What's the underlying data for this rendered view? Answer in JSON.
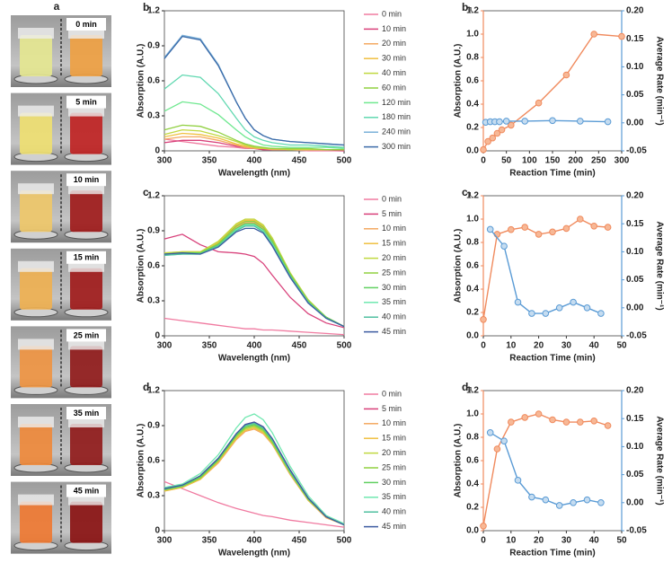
{
  "panel_a": {
    "label": "a",
    "photos": [
      {
        "label": "0 min",
        "left_color": "#e6e890",
        "right_color": "#f0a040"
      },
      {
        "label": "5 min",
        "left_color": "#f0e070",
        "right_color": "#c02020"
      },
      {
        "label": "10 min",
        "left_color": "#f0c868",
        "right_color": "#a01818"
      },
      {
        "label": "15 min",
        "left_color": "#f0b050",
        "right_color": "#a01818"
      },
      {
        "label": "25 min",
        "left_color": "#f09440",
        "right_color": "#901818"
      },
      {
        "label": "35 min",
        "left_color": "#f08838",
        "right_color": "#901818"
      },
      {
        "label": "45 min",
        "left_color": "#f07830",
        "right_color": "#8a1010"
      }
    ]
  },
  "chart_data": [
    {
      "type": "line",
      "panel": "b",
      "xlabel": "Wavelength (nm)",
      "ylabel": "Absorption (A.U.)",
      "x": [
        300,
        320,
        340,
        360,
        380,
        390,
        400,
        410,
        420,
        440,
        460,
        480,
        500
      ],
      "xlim": [
        300,
        500
      ],
      "xticks": [
        300,
        350,
        400,
        450,
        500
      ],
      "ylim": [
        0,
        1.2
      ],
      "yticks": [
        0,
        0.3,
        0.6,
        0.9,
        1.2
      ],
      "legend": "right",
      "series": [
        {
          "name": "0 min",
          "color": "#f07aa0",
          "values": [
            0.1,
            0.08,
            0.06,
            0.04,
            0.03,
            0.02,
            0.02,
            0.01,
            0.01,
            0.01,
            0.0,
            0.0,
            0.0
          ]
        },
        {
          "name": "10 min",
          "color": "#d8407a",
          "values": [
            0.07,
            0.09,
            0.09,
            0.07,
            0.04,
            0.03,
            0.02,
            0.01,
            0.01,
            0.01,
            0.01,
            0.01,
            0.0
          ]
        },
        {
          "name": "20 min",
          "color": "#f4a860",
          "values": [
            0.1,
            0.12,
            0.12,
            0.09,
            0.05,
            0.03,
            0.02,
            0.02,
            0.01,
            0.01,
            0.01,
            0.01,
            0.01
          ]
        },
        {
          "name": "30 min",
          "color": "#f0c040",
          "values": [
            0.12,
            0.15,
            0.14,
            0.11,
            0.06,
            0.04,
            0.03,
            0.02,
            0.02,
            0.01,
            0.01,
            0.01,
            0.01
          ]
        },
        {
          "name": "40 min",
          "color": "#c0d840",
          "values": [
            0.14,
            0.18,
            0.17,
            0.13,
            0.08,
            0.05,
            0.03,
            0.02,
            0.02,
            0.01,
            0.01,
            0.01,
            0.01
          ]
        },
        {
          "name": "60 min",
          "color": "#90d040",
          "values": [
            0.18,
            0.22,
            0.21,
            0.16,
            0.09,
            0.06,
            0.04,
            0.03,
            0.02,
            0.02,
            0.02,
            0.01,
            0.01
          ]
        },
        {
          "name": "120 min",
          "color": "#70e890",
          "values": [
            0.34,
            0.42,
            0.4,
            0.31,
            0.18,
            0.12,
            0.08,
            0.05,
            0.04,
            0.03,
            0.03,
            0.03,
            0.02
          ]
        },
        {
          "name": "180 min",
          "color": "#60d8b0",
          "values": [
            0.53,
            0.65,
            0.63,
            0.49,
            0.28,
            0.18,
            0.12,
            0.09,
            0.07,
            0.05,
            0.05,
            0.04,
            0.03
          ]
        },
        {
          "name": "240 min",
          "color": "#7ab0d8",
          "values": [
            0.8,
            0.99,
            0.96,
            0.74,
            0.42,
            0.28,
            0.18,
            0.13,
            0.1,
            0.08,
            0.07,
            0.06,
            0.05
          ]
        },
        {
          "name": "300 min",
          "color": "#3a6aa8",
          "values": [
            0.79,
            0.98,
            0.95,
            0.73,
            0.42,
            0.28,
            0.18,
            0.13,
            0.1,
            0.08,
            0.07,
            0.06,
            0.05
          ]
        }
      ]
    },
    {
      "type": "line",
      "panel": "c",
      "xlabel": "Wavelength (nm)",
      "ylabel": "Absorption (A.U.)",
      "x": [
        300,
        320,
        340,
        360,
        380,
        390,
        400,
        410,
        420,
        440,
        460,
        480,
        500
      ],
      "xlim": [
        300,
        500
      ],
      "xticks": [
        300,
        350,
        400,
        450,
        500
      ],
      "ylim": [
        0,
        1.2
      ],
      "yticks": [
        0,
        0.3,
        0.6,
        0.9,
        1.2
      ],
      "legend": "right",
      "series": [
        {
          "name": "0 min",
          "color": "#f07aa0",
          "values": [
            0.15,
            0.13,
            0.11,
            0.09,
            0.07,
            0.06,
            0.06,
            0.05,
            0.05,
            0.04,
            0.03,
            0.02,
            0.01
          ]
        },
        {
          "name": "5 min",
          "color": "#d8407a",
          "values": [
            0.83,
            0.87,
            0.78,
            0.72,
            0.71,
            0.7,
            0.68,
            0.62,
            0.52,
            0.33,
            0.19,
            0.11,
            0.07
          ]
        },
        {
          "name": "10 min",
          "color": "#f4a860",
          "values": [
            0.7,
            0.71,
            0.71,
            0.79,
            0.93,
            0.97,
            0.97,
            0.92,
            0.81,
            0.53,
            0.3,
            0.16,
            0.08
          ]
        },
        {
          "name": "15 min",
          "color": "#f0c040",
          "values": [
            0.71,
            0.72,
            0.72,
            0.8,
            0.95,
            0.99,
            0.99,
            0.94,
            0.83,
            0.54,
            0.3,
            0.16,
            0.08
          ]
        },
        {
          "name": "20 min",
          "color": "#c0d840",
          "values": [
            0.71,
            0.72,
            0.72,
            0.81,
            0.96,
            1.0,
            1.0,
            0.95,
            0.84,
            0.54,
            0.31,
            0.16,
            0.08
          ]
        },
        {
          "name": "25 min",
          "color": "#90d040",
          "values": [
            0.7,
            0.71,
            0.71,
            0.79,
            0.94,
            0.98,
            0.98,
            0.93,
            0.82,
            0.53,
            0.3,
            0.16,
            0.08
          ]
        },
        {
          "name": "30 min",
          "color": "#60d060",
          "values": [
            0.7,
            0.71,
            0.71,
            0.78,
            0.92,
            0.96,
            0.96,
            0.91,
            0.8,
            0.52,
            0.29,
            0.16,
            0.08
          ]
        },
        {
          "name": "35 min",
          "color": "#70e8b0",
          "values": [
            0.69,
            0.7,
            0.7,
            0.77,
            0.91,
            0.95,
            0.95,
            0.9,
            0.79,
            0.51,
            0.29,
            0.15,
            0.08
          ]
        },
        {
          "name": "40 min",
          "color": "#50c0a0",
          "values": [
            0.69,
            0.7,
            0.7,
            0.77,
            0.9,
            0.94,
            0.94,
            0.89,
            0.78,
            0.51,
            0.29,
            0.15,
            0.08
          ]
        },
        {
          "name": "45 min",
          "color": "#3a5aa0",
          "values": [
            0.7,
            0.71,
            0.7,
            0.76,
            0.89,
            0.92,
            0.92,
            0.88,
            0.77,
            0.5,
            0.28,
            0.15,
            0.08
          ]
        }
      ]
    },
    {
      "type": "line",
      "panel": "d",
      "xlabel": "Wavelength (nm)",
      "ylabel": "Absorption (A.U.)",
      "x": [
        300,
        320,
        340,
        360,
        380,
        390,
        400,
        410,
        420,
        440,
        460,
        480,
        500
      ],
      "xlim": [
        300,
        500
      ],
      "xticks": [
        300,
        350,
        400,
        450,
        500
      ],
      "ylim": [
        0,
        1.2
      ],
      "yticks": [
        0,
        0.3,
        0.6,
        0.9,
        1.2
      ],
      "legend": "right",
      "series": [
        {
          "name": "0 min",
          "color": "#f07aa0",
          "values": [
            0.42,
            0.36,
            0.3,
            0.24,
            0.19,
            0.17,
            0.15,
            0.13,
            0.12,
            0.09,
            0.07,
            0.05,
            0.03
          ]
        },
        {
          "name": "5 min",
          "color": "#d8407a",
          "values": [
            0.36,
            0.39,
            0.47,
            0.62,
            0.83,
            0.91,
            0.93,
            0.89,
            0.79,
            0.52,
            0.28,
            0.12,
            0.05
          ]
        },
        {
          "name": "10 min",
          "color": "#f4a860",
          "values": [
            0.34,
            0.37,
            0.44,
            0.58,
            0.78,
            0.85,
            0.87,
            0.83,
            0.74,
            0.48,
            0.26,
            0.11,
            0.05
          ]
        },
        {
          "name": "15 min",
          "color": "#f0c040",
          "values": [
            0.34,
            0.37,
            0.44,
            0.59,
            0.79,
            0.86,
            0.88,
            0.84,
            0.75,
            0.49,
            0.26,
            0.12,
            0.05
          ]
        },
        {
          "name": "20 min",
          "color": "#c0d840",
          "values": [
            0.35,
            0.38,
            0.45,
            0.6,
            0.8,
            0.87,
            0.89,
            0.85,
            0.75,
            0.49,
            0.27,
            0.12,
            0.05
          ]
        },
        {
          "name": "25 min",
          "color": "#90d040",
          "values": [
            0.35,
            0.38,
            0.45,
            0.6,
            0.81,
            0.88,
            0.9,
            0.86,
            0.76,
            0.5,
            0.27,
            0.12,
            0.05
          ]
        },
        {
          "name": "30 min",
          "color": "#60d060",
          "values": [
            0.35,
            0.38,
            0.46,
            0.61,
            0.82,
            0.89,
            0.91,
            0.87,
            0.77,
            0.5,
            0.27,
            0.12,
            0.05
          ]
        },
        {
          "name": "35 min",
          "color": "#70e8b0",
          "values": [
            0.37,
            0.4,
            0.49,
            0.65,
            0.88,
            0.97,
            1.0,
            0.95,
            0.84,
            0.55,
            0.3,
            0.13,
            0.06
          ]
        },
        {
          "name": "40 min",
          "color": "#50c0a0",
          "values": [
            0.36,
            0.39,
            0.47,
            0.62,
            0.83,
            0.9,
            0.92,
            0.88,
            0.78,
            0.51,
            0.28,
            0.12,
            0.05
          ]
        },
        {
          "name": "45 min",
          "color": "#3a5aa0",
          "values": [
            0.36,
            0.39,
            0.47,
            0.62,
            0.83,
            0.91,
            0.93,
            0.89,
            0.79,
            0.52,
            0.28,
            0.12,
            0.05
          ]
        }
      ]
    },
    {
      "type": "line",
      "panel": "b₁",
      "xlabel": "Reaction Time (min)",
      "ylabel": "Absorption (A.U.)",
      "y2label": "Average Rate (min⁻¹)",
      "xlim": [
        0,
        300
      ],
      "xticks": [
        0,
        50,
        100,
        150,
        200,
        250,
        300
      ],
      "ylim": [
        0,
        1.2
      ],
      "yticks": [
        {
          "value": 0,
          "label": "0.0"
        },
        0.2,
        0.4,
        0.6,
        0.8,
        {
          "value": 1,
          "label": "1.0"
        },
        1.2
      ],
      "y2lim": [
        -0.05,
        0.2
      ],
      "y2ticks": [
        -0.05,
        {
          "value": 0,
          "label": "0.00"
        },
        0.05,
        {
          "value": 0.1,
          "label": "0.10"
        },
        0.15,
        {
          "value": 0.2,
          "label": "0.20"
        }
      ],
      "series": [
        {
          "color": "#f08a5d",
          "marker_fill": "#f7b896",
          "x": [
            0,
            10,
            20,
            30,
            40,
            60,
            120,
            180,
            240,
            300
          ],
          "values": [
            0.01,
            0.08,
            0.11,
            0.15,
            0.18,
            0.22,
            0.41,
            0.65,
            1.0,
            0.98
          ]
        },
        {
          "color": "#5a9bd5",
          "marker_fill": "#c5dcf0",
          "axis": "y2",
          "x": [
            5,
            15,
            25,
            35,
            50,
            90,
            150,
            210,
            270
          ],
          "values": [
            0.001,
            0.002,
            0.002,
            0.002,
            0.003,
            0.003,
            0.004,
            0.003,
            0.002
          ]
        }
      ]
    },
    {
      "type": "line",
      "panel": "c₁",
      "xlabel": "Reaction Time (min)",
      "ylabel": "Absorption (A.U.)",
      "y2label": "Average Rate (min⁻¹)",
      "xlim": [
        0,
        50
      ],
      "xticks": [
        0,
        10,
        20,
        30,
        40,
        50
      ],
      "ylim": [
        0,
        1.2
      ],
      "yticks": [
        {
          "value": 0,
          "label": "0.0"
        },
        0.2,
        0.4,
        0.6,
        0.8,
        {
          "value": 1,
          "label": "1.0"
        },
        1.2
      ],
      "y2lim": [
        -0.05,
        0.2
      ],
      "y2ticks": [
        -0.05,
        {
          "value": 0,
          "label": "0.00"
        },
        0.05,
        {
          "value": 0.1,
          "label": "0.10"
        },
        0.15,
        {
          "value": 0.2,
          "label": "0.20"
        }
      ],
      "series": [
        {
          "color": "#f08a5d",
          "marker_fill": "#f7b896",
          "x": [
            0,
            5,
            10,
            15,
            20,
            25,
            30,
            35,
            40,
            45
          ],
          "values": [
            0.14,
            0.87,
            0.91,
            0.93,
            0.87,
            0.89,
            0.92,
            1.0,
            0.94,
            0.93
          ]
        },
        {
          "color": "#5a9bd5",
          "marker_fill": "#c5dcf0",
          "axis": "y2",
          "x": [
            2.5,
            7.5,
            12.5,
            17.5,
            22.5,
            27.5,
            32.5,
            37.5,
            42.5
          ],
          "values": [
            0.14,
            0.11,
            0.01,
            -0.01,
            -0.01,
            0.0,
            0.01,
            0.0,
            -0.01
          ]
        }
      ]
    },
    {
      "type": "line",
      "panel": "d₁",
      "xlabel": "Reaction Time (min)",
      "ylabel": "Absorption (A.U.)",
      "y2label": "Average Rate (min⁻¹)",
      "xlim": [
        0,
        50
      ],
      "xticks": [
        0,
        10,
        20,
        30,
        40,
        50
      ],
      "ylim": [
        0,
        1.2
      ],
      "yticks": [
        {
          "value": 0,
          "label": "0.0"
        },
        0.2,
        0.4,
        0.6,
        0.8,
        {
          "value": 1,
          "label": "1.0"
        },
        1.2
      ],
      "y2lim": [
        -0.05,
        0.2
      ],
      "y2ticks": [
        -0.05,
        {
          "value": 0,
          "label": "0.00"
        },
        0.05,
        {
          "value": 0.1,
          "label": "0.10"
        },
        0.15,
        {
          "value": 0.2,
          "label": "0.20"
        }
      ],
      "series": [
        {
          "color": "#f08a5d",
          "marker_fill": "#f7b896",
          "x": [
            0,
            5,
            10,
            15,
            20,
            25,
            30,
            35,
            40,
            45
          ],
          "values": [
            0.04,
            0.7,
            0.93,
            0.97,
            1.0,
            0.95,
            0.93,
            0.93,
            0.94,
            0.9
          ]
        },
        {
          "color": "#5a9bd5",
          "marker_fill": "#c5dcf0",
          "axis": "y2",
          "x": [
            2.5,
            7.5,
            12.5,
            17.5,
            22.5,
            27.5,
            32.5,
            37.5,
            42.5
          ],
          "values": [
            0.125,
            0.11,
            0.04,
            0.01,
            0.005,
            -0.005,
            0.0,
            0.005,
            0.0
          ]
        }
      ]
    }
  ]
}
